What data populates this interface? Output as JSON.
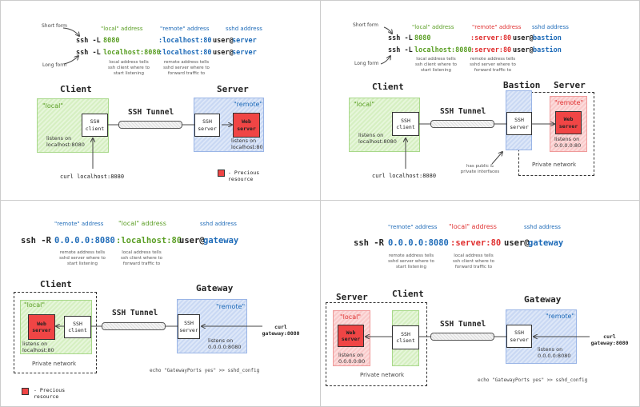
{
  "common": {
    "short_form": "Short form",
    "long_form": "Long form",
    "client": "Client",
    "server": "Server",
    "gateway": "Gateway",
    "bastion": "Bastion",
    "tunnel": "SSH Tunnel",
    "ssh_client": "SSH client",
    "ssh_server": "SSH server",
    "web_server": "Web server",
    "local_tag": "\"local\"",
    "remote_tag": "\"remote\"",
    "private_network": "Private network",
    "legend": "- Precious resource",
    "colors": {
      "local": "#5a9e24",
      "remote": "#1e6bb8",
      "precious": "#f04545"
    }
  },
  "p1": {
    "h_local": "\"local\" address",
    "h_remote": "\"remote\" address",
    "h_sshd": "sshd address",
    "c1_a": "ssh -L",
    "c1_b": "8080",
    "c1_c": ":localhost:80",
    "c1_d": "user@",
    "c1_e": "server",
    "c2_a": "ssh -L",
    "c2_b": "localhost:8080",
    "c2_c": ":localhost:80",
    "c2_d": "user@",
    "c2_e": "server",
    "note_local": "local address tells ssh client where to start listening",
    "note_remote": "remote address tells sshd server where to forward traffic to",
    "listen_client": "listens on localhost:8080",
    "listen_server": "listens on localhost:80",
    "curl": "curl localhost:8080"
  },
  "p2": {
    "h_local": "\"local\" address",
    "h_remote": "\"remote\" address",
    "h_sshd": "sshd address",
    "c1_a": "ssh -L",
    "c1_b": "8080",
    "c1_c": ":server:80",
    "c1_d": "user@",
    "c1_e": "bastion",
    "c2_a": "ssh -L",
    "c2_b": "localhost:8080",
    "c2_c": ":server:80",
    "c2_d": "user@",
    "c2_e": "bastion",
    "note_local": "local address tells ssh client where to start listening",
    "note_remote": "remote address tells sshd server where to forward traffic to",
    "listen_client": "listens on localhost:8080",
    "listen_server": "listens on 0.0.0.0:80",
    "bastion_note": "has public & private interfaces",
    "curl": "curl localhost:8080"
  },
  "p3": {
    "h_remote": "\"remote\" address",
    "h_local": "\"local\" address",
    "h_sshd": "sshd address",
    "c_a": "ssh -R",
    "c_b": "0.0.0.0:8080",
    "c_c": ":localhost:80",
    "c_d": "user@",
    "c_e": "gateway",
    "note_remote": "remote address tells sshd server where to start listening",
    "note_local": "local address tells ssh client where to forward traffic to",
    "listen_web": "listens on localhost:80",
    "listen_server": "listens on 0.0.0.0:8080",
    "curl": "curl gateway:8080",
    "echo": "echo \"GatewayPorts yes\" >> sshd_config"
  },
  "p4": {
    "h_remote": "\"remote\" address",
    "h_local": "\"local\" address",
    "h_sshd": "sshd address",
    "c_a": "ssh -R",
    "c_b": "0.0.0.0:8080",
    "c_c": ":server:80",
    "c_d": "user@",
    "c_e": "gateway",
    "note_remote": "remote address tells sshd server where to start listening",
    "note_local": "local address tells ssh client where to forward traffic to",
    "listen_web": "listens on 0.0.0.0:80",
    "listen_server": "listens on 0.0.0.0:8080",
    "curl": "curl gateway:8080",
    "echo": "echo \"GatewayPorts yes\" >> sshd_config"
  }
}
